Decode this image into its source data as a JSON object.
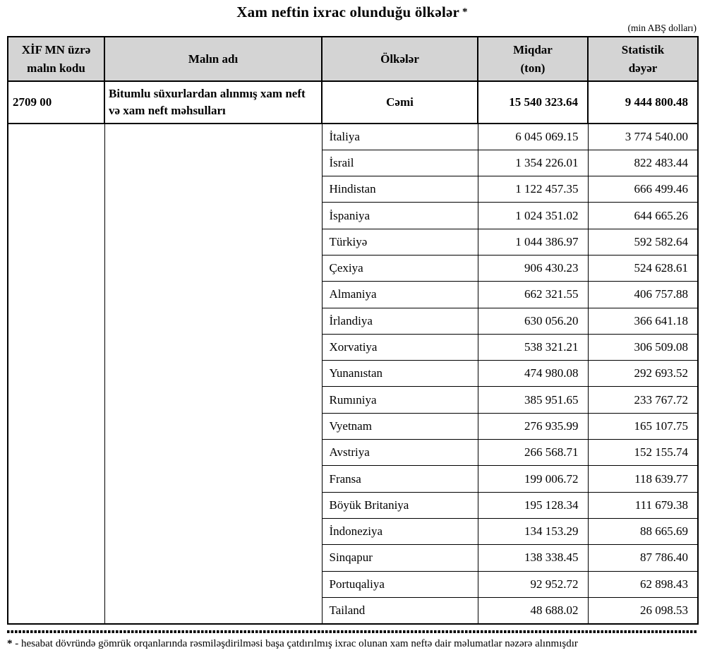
{
  "title": {
    "text": "Xam neftin ixrac olunduğu ölkələr",
    "asterisk": "*"
  },
  "unit_note": "(min ABŞ dolları)",
  "colors": {
    "header_bg": "#d4d4d4",
    "border": "#000000",
    "page_bg": "#ffffff"
  },
  "table": {
    "columns": {
      "code": {
        "line1": "XİF MN üzrə",
        "line2": "malın kodu"
      },
      "name": "Malın adı",
      "countries": "Ölkələr",
      "quantity": {
        "line1": "Miqdar",
        "line2": "(ton)"
      },
      "value": {
        "line1": "Statistik",
        "line2": "dəyər"
      }
    },
    "total_row": {
      "code": "2709 00",
      "product_name": "Bitumlu süxurlardan alınmış xam neft və xam neft məhsulları",
      "label": "Cəmi",
      "quantity": "15 540 323.64",
      "value": "9 444 800.48"
    },
    "rows": [
      {
        "country": "İtaliya",
        "quantity": "6 045 069.15",
        "value": "3 774 540.00"
      },
      {
        "country": "İsrail",
        "quantity": "1 354 226.01",
        "value": "822 483.44"
      },
      {
        "country": "Hindistan",
        "quantity": "1 122 457.35",
        "value": "666 499.46"
      },
      {
        "country": "İspaniya",
        "quantity": "1 024 351.02",
        "value": "644 665.26"
      },
      {
        "country": "Türkiyə",
        "quantity": "1 044 386.97",
        "value": "592 582.64"
      },
      {
        "country": "Çexiya",
        "quantity": "906 430.23",
        "value": "524 628.61"
      },
      {
        "country": "Almaniya",
        "quantity": "662 321.55",
        "value": "406 757.88"
      },
      {
        "country": "İrlandiya",
        "quantity": "630 056.20",
        "value": "366 641.18"
      },
      {
        "country": "Xorvatiya",
        "quantity": "538 321.21",
        "value": "306 509.08"
      },
      {
        "country": "Yunanıstan",
        "quantity": "474 980.08",
        "value": "292 693.52"
      },
      {
        "country": "Rumıniya",
        "quantity": "385 951.65",
        "value": "233 767.72"
      },
      {
        "country": "Vyetnam",
        "quantity": "276 935.99",
        "value": "165 107.75"
      },
      {
        "country": "Avstriya",
        "quantity": "266 568.71",
        "value": "152 155.74"
      },
      {
        "country": "Fransa",
        "quantity": "199 006.72",
        "value": "118 639.77"
      },
      {
        "country": "Böyük Britaniya",
        "quantity": "195 128.34",
        "value": "111 679.38"
      },
      {
        "country": "İndoneziya",
        "quantity": "134 153.29",
        "value": "88 665.69"
      },
      {
        "country": "Sinqapur",
        "quantity": "138 338.45",
        "value": "87 786.40"
      },
      {
        "country": "Portuqaliya",
        "quantity": "92 952.72",
        "value": "62 898.43"
      },
      {
        "country": "Tailand",
        "quantity": "48 688.02",
        "value": "26 098.53"
      }
    ]
  },
  "footnote": {
    "marker": "*",
    "text": "- hesabat dövründə gömrük orqanlarında rəsmiləşdirilməsi başa çatdırılmış ixrac olunan xam neftə dair məlumatlar nəzərə alınmışdır"
  }
}
